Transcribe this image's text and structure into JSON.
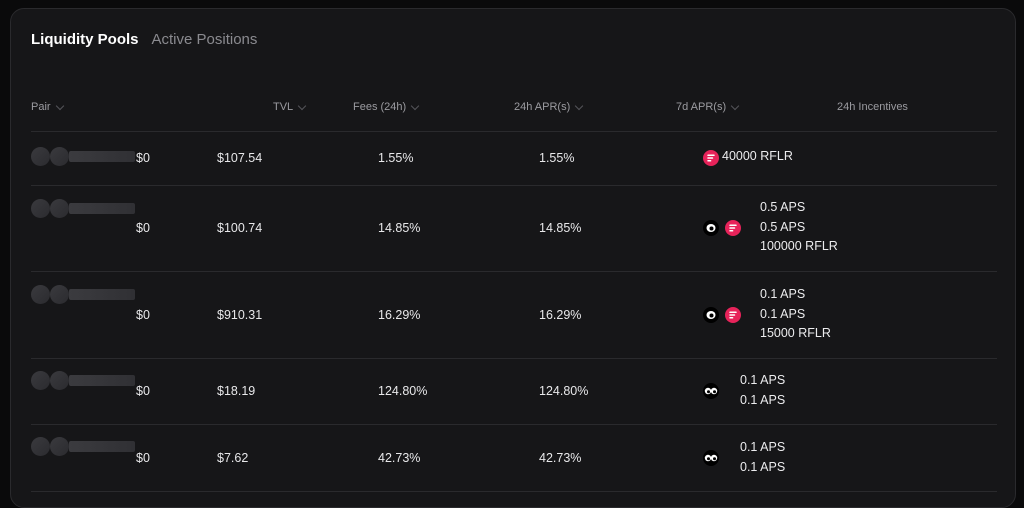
{
  "tabs": [
    {
      "label": "Liquidity Pools",
      "active": true
    },
    {
      "label": "Active Positions",
      "active": false
    }
  ],
  "columns": {
    "pair": "Pair",
    "tvl": "TVL",
    "fees": "Fees (24h)",
    "apr24": "24h APR(s)",
    "apr7d": "7d APR(s)",
    "incentives": "24h Incentives"
  },
  "rows": [
    {
      "value": "$0",
      "tvl": "$107.54",
      "fees": "1.55%",
      "apr24": "1.55%",
      "icons": [
        "rflr-icon"
      ],
      "incentives": [
        "40000 RFLR"
      ]
    },
    {
      "value": "$0",
      "tvl": "$100.74",
      "fees": "14.85%",
      "apr24": "14.85%",
      "icons": [
        "aps-icon",
        "rflr-icon"
      ],
      "incentives": [
        "0.5 APS",
        "0.5 APS",
        "100000 RFLR"
      ]
    },
    {
      "value": "$0",
      "tvl": "$910.31",
      "fees": "16.29%",
      "apr24": "16.29%",
      "icons": [
        "aps-icon",
        "rflr-icon"
      ],
      "incentives": [
        "0.1 APS",
        "0.1 APS",
        "15000 RFLR"
      ]
    },
    {
      "value": "$0",
      "tvl": "$18.19",
      "fees": "124.80%",
      "apr24": "124.80%",
      "icons": [
        "aps-icon"
      ],
      "incentives": [
        "0.1 APS",
        "0.1 APS"
      ]
    },
    {
      "value": "$0",
      "tvl": "$7.62",
      "fees": "42.73%",
      "apr24": "42.73%",
      "icons": [
        "aps-icon"
      ],
      "incentives": [
        "0.1 APS",
        "0.1 APS"
      ]
    }
  ],
  "colors": {
    "rflr": "#e7235a",
    "background": "#161618"
  }
}
